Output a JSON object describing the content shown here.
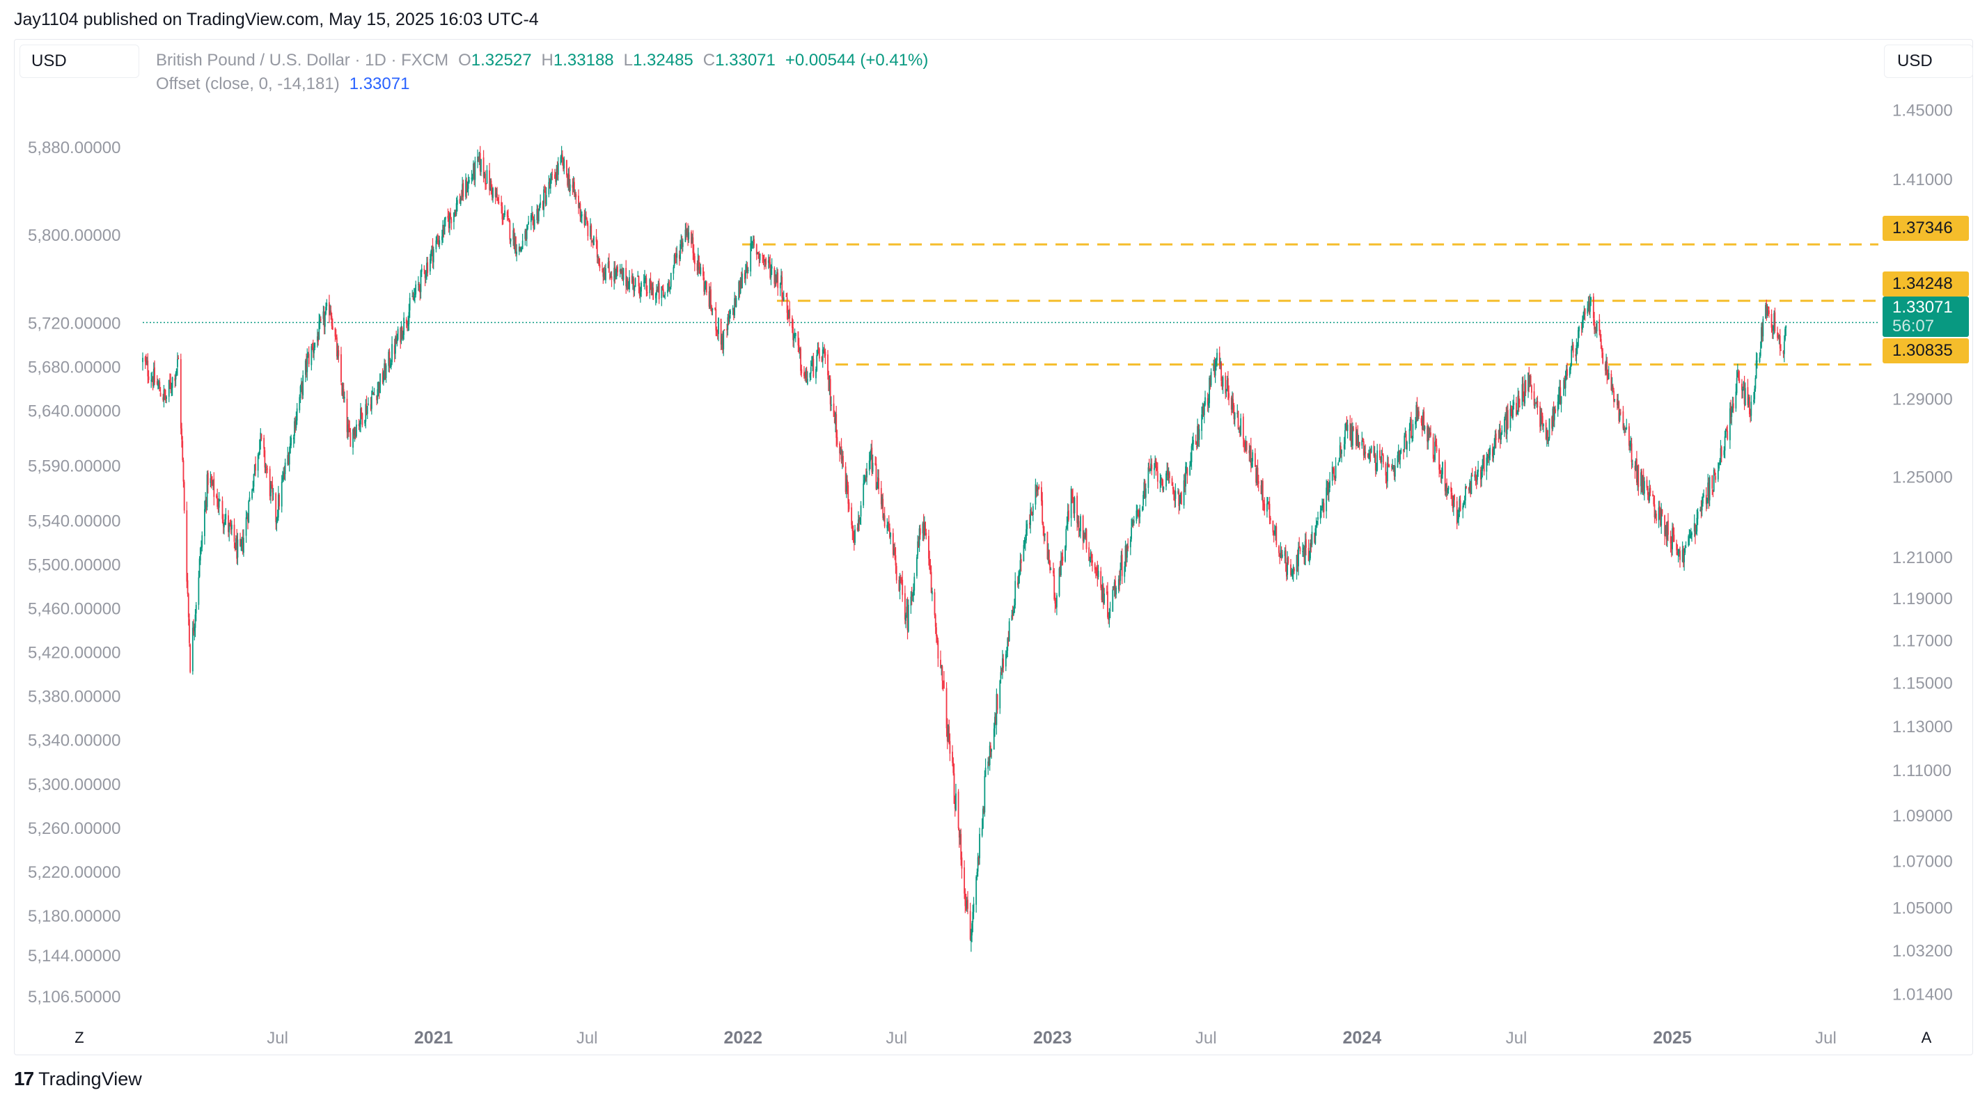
{
  "publisher_line": "Jay1104 published on TradingView.com, May 15, 2025 16:03 UTC-4",
  "currency_left": "USD",
  "currency_right": "USD",
  "legend": {
    "symbol": "British Pound / U.S. Dollar · 1D · FXCM",
    "o_label": "O",
    "o_value": "1.32527",
    "h_label": "H",
    "h_value": "1.33188",
    "l_label": "L",
    "l_value": "1.32485",
    "c_label": "C",
    "c_value": "1.33071",
    "change": "+0.00544 (+0.41%)",
    "indicator": "Offset (close, 0, -14,181)",
    "indicator_value": "1.33071"
  },
  "price_tags": {
    "level_1": "1.37346",
    "level_2": "1.34248",
    "current_price": "1.33071",
    "countdown": "56:07",
    "level_3": "1.30835"
  },
  "axis_buttons": {
    "left": "Z",
    "right": "A"
  },
  "footer_logo": {
    "mark": "17",
    "text": "TradingView"
  },
  "colors": {
    "up_candle": "#089981",
    "down_candle": "#f23645",
    "level_line": "#f5bd2b",
    "current_line": "#089981",
    "axis_text": "#9598a1"
  },
  "chart_data": {
    "type": "candlestick",
    "title": "British Pound / U.S. Dollar · 1D · FXCM",
    "scale": "log",
    "x_ticks": [
      "Jul",
      "2021",
      "Jul",
      "2022",
      "Jul",
      "2023",
      "Jul",
      "2024",
      "Jul",
      "2025",
      "Jul"
    ],
    "x_tick_dates": [
      "2020-07-01",
      "2021-01-01",
      "2021-07-01",
      "2022-01-01",
      "2022-07-01",
      "2023-01-01",
      "2023-07-01",
      "2024-01-01",
      "2024-07-01",
      "2025-01-01",
      "2025-07-01"
    ],
    "x_range": [
      "2020-01-24",
      "2025-09-01"
    ],
    "y_right_ticks": [
      "1.45000",
      "1.41000",
      "1.29000",
      "1.25000",
      "1.21000",
      "1.19000",
      "1.17000",
      "1.15000",
      "1.13000",
      "1.11000",
      "1.09000",
      "1.07000",
      "1.05000",
      "1.03200",
      "1.01400"
    ],
    "y_left_ticks": [
      "5,880.00000",
      "5,800.00000",
      "5,720.00000",
      "5,680.00000",
      "5,640.00000",
      "5,590.00000",
      "5,540.00000",
      "5,500.00000",
      "5,460.00000",
      "5,420.00000",
      "5,380.00000",
      "5,340.00000",
      "5,300.00000",
      "5,260.00000",
      "5,220.00000",
      "5,180.00000",
      "5,144.00000",
      "5,106.50000"
    ],
    "y_range": [
      1.005,
      1.47
    ],
    "horizontal_levels": [
      {
        "price": 1.37346,
        "start": "2021-12-31"
      },
      {
        "price": 1.34248,
        "start": "2022-02-10"
      },
      {
        "price": 1.30835,
        "start": "2022-04-20"
      }
    ],
    "current_price": 1.33071,
    "price_path": [
      [
        "2020-01-24",
        1.31
      ],
      [
        "2020-02-20",
        1.29
      ],
      [
        "2020-03-06",
        1.31
      ],
      [
        "2020-03-20",
        1.16
      ],
      [
        "2020-04-10",
        1.25
      ],
      [
        "2020-05-18",
        1.21
      ],
      [
        "2020-06-10",
        1.27
      ],
      [
        "2020-06-29",
        1.23
      ],
      [
        "2020-08-05",
        1.31
      ],
      [
        "2020-09-01",
        1.34
      ],
      [
        "2020-09-23",
        1.27
      ],
      [
        "2020-11-01",
        1.3
      ],
      [
        "2020-12-31",
        1.37
      ],
      [
        "2021-02-24",
        1.42
      ],
      [
        "2021-04-12",
        1.37
      ],
      [
        "2021-06-01",
        1.42
      ],
      [
        "2021-07-20",
        1.36
      ],
      [
        "2021-09-30",
        1.345
      ],
      [
        "2021-10-26",
        1.383
      ],
      [
        "2021-12-08",
        1.32
      ],
      [
        "2021-12-31",
        1.354
      ],
      [
        "2022-01-13",
        1.373
      ],
      [
        "2022-02-15",
        1.352
      ],
      [
        "2022-03-15",
        1.3
      ],
      [
        "2022-04-05",
        1.315
      ],
      [
        "2022-05-13",
        1.22
      ],
      [
        "2022-06-01",
        1.26
      ],
      [
        "2022-07-14",
        1.18
      ],
      [
        "2022-08-01",
        1.23
      ],
      [
        "2022-09-26",
        1.035
      ],
      [
        "2022-10-15",
        1.11
      ],
      [
        "2022-11-25",
        1.21
      ],
      [
        "2022-12-14",
        1.245
      ],
      [
        "2023-01-05",
        1.19
      ],
      [
        "2023-01-23",
        1.24
      ],
      [
        "2023-03-08",
        1.185
      ],
      [
        "2023-04-28",
        1.255
      ],
      [
        "2023-06-01",
        1.24
      ],
      [
        "2023-07-14",
        1.31
      ],
      [
        "2023-08-15",
        1.27
      ],
      [
        "2023-10-04",
        1.205
      ],
      [
        "2023-11-01",
        1.215
      ],
      [
        "2023-12-14",
        1.275
      ],
      [
        "2024-02-06",
        1.25
      ],
      [
        "2024-03-08",
        1.285
      ],
      [
        "2024-04-22",
        1.232
      ],
      [
        "2024-07-17",
        1.3
      ],
      [
        "2024-08-05",
        1.27
      ],
      [
        "2024-09-26",
        1.342
      ],
      [
        "2024-10-15",
        1.305
      ],
      [
        "2024-11-22",
        1.25
      ],
      [
        "2025-01-13",
        1.21
      ],
      [
        "2025-02-28",
        1.26
      ],
      [
        "2025-03-19",
        1.3
      ],
      [
        "2025-04-04",
        1.285
      ],
      [
        "2025-04-21",
        1.341
      ],
      [
        "2025-05-12",
        1.318
      ],
      [
        "2025-05-15",
        1.3307
      ]
    ],
    "ohlc_last": {
      "open": 1.32527,
      "high": 1.33188,
      "low": 1.32485,
      "close": 1.33071
    },
    "change": 0.00544,
    "change_percent": 0.41
  }
}
